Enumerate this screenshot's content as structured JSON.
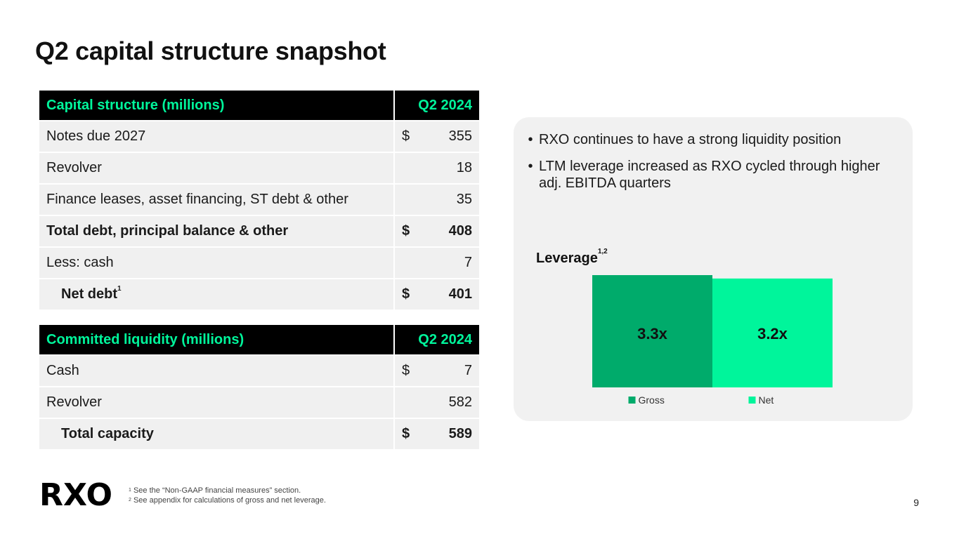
{
  "title": "Q2 capital structure snapshot",
  "capital_structure": {
    "header": {
      "label": "Capital structure (millions)",
      "period": "Q2 2024"
    },
    "rows": [
      {
        "label": "Notes due 2027",
        "dollar": "$",
        "value": "355",
        "footnote": ""
      },
      {
        "label": "Revolver",
        "dollar": "",
        "value": "18",
        "footnote": ""
      },
      {
        "label": "Finance leases, asset financing, ST debt & other",
        "dollar": "",
        "value": "35",
        "footnote": ""
      },
      {
        "label": "Total debt, principal balance & other",
        "dollar": "$",
        "value": "408",
        "footnote": ""
      },
      {
        "label": "Less: cash",
        "dollar": "",
        "value": "7",
        "footnote": ""
      },
      {
        "label": "Net debt",
        "dollar": "$",
        "value": "401",
        "footnote": "1"
      }
    ]
  },
  "committed_liquidity": {
    "header": {
      "label": "Committed liquidity (millions)",
      "period": "Q2 2024"
    },
    "rows": [
      {
        "label": "Cash",
        "dollar": "$",
        "value": "7"
      },
      {
        "label": "Revolver",
        "dollar": "",
        "value": "582"
      },
      {
        "label": "Total capacity",
        "dollar": "$",
        "value": "589"
      }
    ]
  },
  "bullets": [
    "RXO continues to have a strong liquidity position",
    "LTM leverage increased as RXO cycled through higher adj. EBITDA quarters"
  ],
  "chart_data": {
    "type": "bar",
    "title": "Leverage",
    "title_footnote": "1,2",
    "categories": [
      "Gross",
      "Net"
    ],
    "values": [
      3.3,
      3.2
    ],
    "data_labels": [
      "3.3x",
      "3.2x"
    ],
    "colors": [
      "#00ab6b",
      "#00f59b"
    ],
    "legend": [
      "Gross",
      "Net"
    ],
    "legend_position": "bottom",
    "ylim": [
      0,
      3.3
    ]
  },
  "footnotes": [
    {
      "num": "1",
      "text": "See the “Non-GAAP financial measures” section."
    },
    {
      "num": "2",
      "text": "See appendix for calculations of gross and net leverage."
    }
  ],
  "logo_text": "RXO",
  "page_number": "9"
}
